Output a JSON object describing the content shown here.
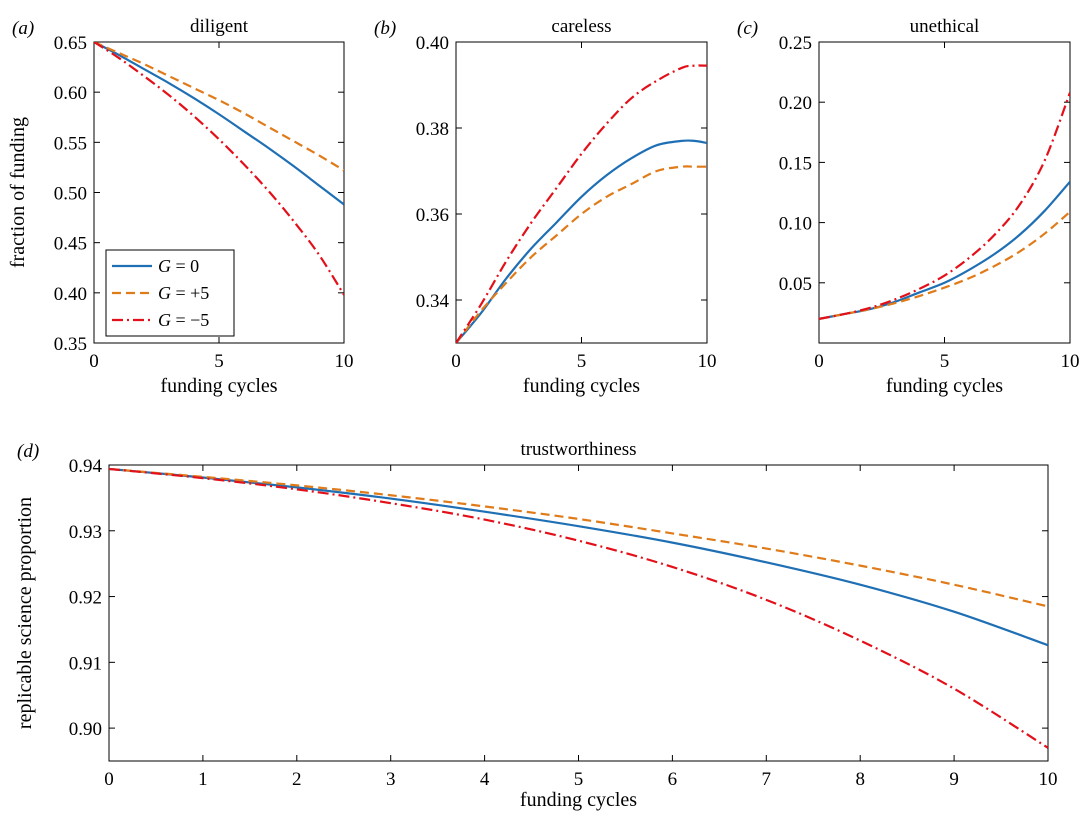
{
  "legend": {
    "placement": "lower-left of panel (a)",
    "entries": [
      "G = 0",
      "G = +5",
      "G = −5"
    ]
  },
  "series_style": {
    "G0": {
      "color": "#1f6fb4",
      "dash": "solid"
    },
    "Gp5": {
      "color": "#e07b1a",
      "dash": "dashed"
    },
    "Gm5": {
      "color": "#e3101a",
      "dash": "dashdot"
    }
  },
  "chart_data": [
    {
      "panel_label": "(a)",
      "type": "line",
      "title": "diligent",
      "xlabel": "funding cycles",
      "ylabel": "fraction of funding",
      "xlim": [
        0,
        10
      ],
      "ylim": [
        0.35,
        0.65
      ],
      "xticks": [
        0,
        5,
        10
      ],
      "yticks": [
        0.35,
        0.4,
        0.45,
        0.5,
        0.55,
        0.6,
        0.65
      ],
      "ytick_labels": [
        "0.35",
        "0.40",
        "0.45",
        "0.50",
        "0.55",
        "0.60",
        "0.65"
      ],
      "x": [
        0,
        1,
        2,
        3,
        4,
        5,
        6,
        7,
        8,
        9,
        10
      ],
      "series": [
        {
          "name": "G = 0",
          "values": [
            0.65,
            0.637,
            0.623,
            0.609,
            0.594,
            0.578,
            0.561,
            0.544,
            0.526,
            0.507,
            0.488
          ]
        },
        {
          "name": "G = +5",
          "values": [
            0.65,
            0.639,
            0.628,
            0.616,
            0.604,
            0.592,
            0.579,
            0.565,
            0.551,
            0.537,
            0.522
          ]
        },
        {
          "name": "G = −5",
          "values": [
            0.65,
            0.634,
            0.616,
            0.597,
            0.576,
            0.553,
            0.528,
            0.501,
            0.471,
            0.438,
            0.398
          ]
        }
      ]
    },
    {
      "panel_label": "(b)",
      "type": "line",
      "title": "careless",
      "xlabel": "funding cycles",
      "ylabel": "",
      "xlim": [
        0,
        10
      ],
      "ylim": [
        0.33,
        0.4
      ],
      "xticks": [
        0,
        5,
        10
      ],
      "yticks": [
        0.34,
        0.36,
        0.38,
        0.4
      ],
      "ytick_labels": [
        "0.34",
        "0.36",
        "0.38",
        "0.40"
      ],
      "x": [
        0,
        1,
        2,
        3,
        4,
        5,
        6,
        7,
        8,
        9,
        9.5,
        10
      ],
      "series": [
        {
          "name": "G = 0",
          "values": [
            0.33,
            0.337,
            0.345,
            0.352,
            0.358,
            0.364,
            0.369,
            0.373,
            0.376,
            0.377,
            0.377,
            0.3765
          ]
        },
        {
          "name": "G = +5",
          "values": [
            0.33,
            0.3375,
            0.344,
            0.35,
            0.355,
            0.36,
            0.364,
            0.367,
            0.37,
            0.371,
            0.371,
            0.371
          ]
        },
        {
          "name": "G = −5",
          "values": [
            0.33,
            0.339,
            0.349,
            0.358,
            0.366,
            0.374,
            0.381,
            0.387,
            0.391,
            0.394,
            0.3945,
            0.3945
          ]
        }
      ]
    },
    {
      "panel_label": "(c)",
      "type": "line",
      "title": "unethical",
      "xlabel": "funding cycles",
      "ylabel": "",
      "xlim": [
        0,
        10
      ],
      "ylim": [
        0.0,
        0.25
      ],
      "xticks": [
        0,
        5,
        10
      ],
      "yticks": [
        0.05,
        0.1,
        0.15,
        0.2,
        0.25
      ],
      "ytick_labels": [
        "0.05",
        "0.10",
        "0.15",
        "0.20",
        "0.25"
      ],
      "x": [
        0,
        1,
        2,
        3,
        4,
        5,
        6,
        7,
        8,
        9,
        10
      ],
      "series": [
        {
          "name": "G = 0",
          "values": [
            0.02,
            0.024,
            0.028,
            0.034,
            0.042,
            0.05,
            0.061,
            0.074,
            0.09,
            0.11,
            0.134
          ]
        },
        {
          "name": "G = +5",
          "values": [
            0.02,
            0.024,
            0.028,
            0.033,
            0.039,
            0.046,
            0.054,
            0.064,
            0.076,
            0.091,
            0.109
          ]
        },
        {
          "name": "G = −5",
          "values": [
            0.02,
            0.024,
            0.029,
            0.036,
            0.045,
            0.056,
            0.071,
            0.09,
            0.115,
            0.152,
            0.208
          ]
        }
      ]
    },
    {
      "panel_label": "(d)",
      "type": "line",
      "title": "trustworthiness",
      "xlabel": "funding cycles",
      "ylabel": "replicable science proportion",
      "xlim": [
        0,
        10
      ],
      "ylim": [
        0.895,
        0.94
      ],
      "xticks": [
        0,
        1,
        2,
        3,
        4,
        5,
        6,
        7,
        8,
        9,
        10
      ],
      "yticks": [
        0.9,
        0.91,
        0.92,
        0.93,
        0.94
      ],
      "ytick_labels": [
        "0.90",
        "0.91",
        "0.92",
        "0.93",
        "0.94"
      ],
      "x": [
        0,
        1,
        2,
        3,
        4,
        5,
        6,
        7,
        8,
        9,
        10
      ],
      "series": [
        {
          "name": "G = 0",
          "values": [
            0.9394,
            0.9381,
            0.9366,
            0.9349,
            0.9329,
            0.9307,
            0.9282,
            0.9252,
            0.9218,
            0.9177,
            0.9126
          ]
        },
        {
          "name": "G = +5",
          "values": [
            0.9394,
            0.9382,
            0.9369,
            0.9354,
            0.9337,
            0.9318,
            0.9296,
            0.9273,
            0.9247,
            0.9218,
            0.9185
          ]
        },
        {
          "name": "G = −5",
          "values": [
            0.9394,
            0.938,
            0.9363,
            0.9342,
            0.9317,
            0.9285,
            0.9245,
            0.9195,
            0.9133,
            0.906,
            0.897
          ]
        }
      ]
    }
  ]
}
